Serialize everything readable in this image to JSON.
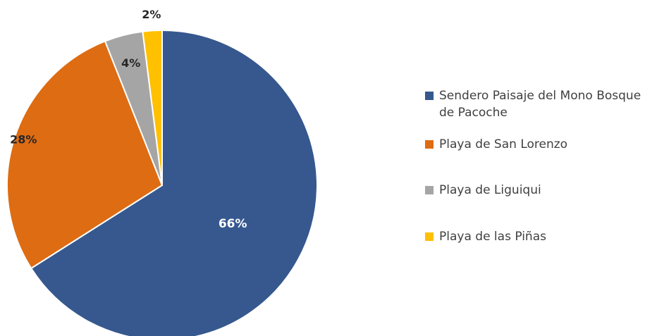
{
  "chart_data": {
    "type": "pie",
    "title": "",
    "start_angle_deg": 0,
    "direction": "clockwise",
    "series": [
      {
        "name": "Sendero Paisaje del Mono Bosque de Pacoche",
        "label": "66%",
        "value": 66,
        "color": "#36588E"
      },
      {
        "name": "Playa de San Lorenzo",
        "label": "28%",
        "value": 28,
        "color": "#DE6C12"
      },
      {
        "name": "Playa de Liguiqui",
        "label": "4%",
        "value": 4,
        "color": "#A5A5A5"
      },
      {
        "name": "Playa de las Piñas",
        "label": "2%",
        "value": 2,
        "color": "#FFC000"
      }
    ],
    "legend_position": "right"
  }
}
